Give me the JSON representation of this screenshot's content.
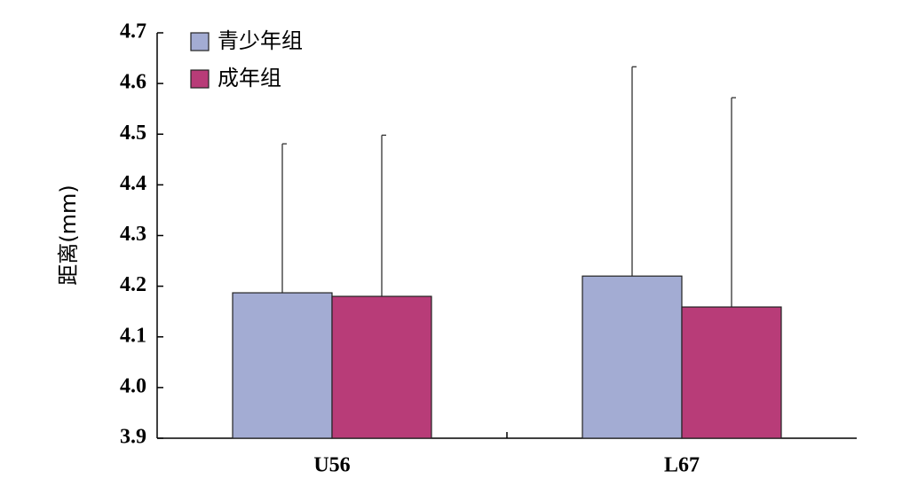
{
  "chart_data": {
    "type": "bar",
    "categories": [
      "U56",
      "L67"
    ],
    "y_label": "距离(mm)",
    "series": [
      {
        "name": "青少年组",
        "color": "#a3acd3",
        "values": [
          4.187,
          4.22
        ],
        "errors": [
          0.294,
          0.413
        ]
      },
      {
        "name": "成年组",
        "color": "#b83c78",
        "values": [
          4.18,
          4.159
        ],
        "errors": [
          0.318,
          0.413
        ]
      }
    ],
    "ylim": [
      3.9,
      4.7
    ],
    "yticks": [
      3.9,
      {
        "value": 4,
        "label": "4.0"
      },
      4.1,
      4.2,
      4.3,
      4.4,
      4.5,
      4.6,
      4.7
    ],
    "legend": "top-left"
  }
}
